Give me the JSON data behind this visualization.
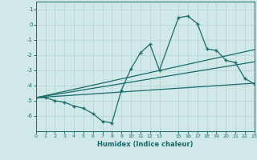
{
  "bg_color": "#d0e8e8",
  "grid_color": "#b8d4d4",
  "line_color": "#1a6b6b",
  "xlabel": "Humidex (Indice chaleur)",
  "xlim": [
    0,
    23
  ],
  "ylim": [
    -7,
    1.5
  ],
  "yticks": [
    1,
    0,
    -1,
    -2,
    -3,
    -4,
    -5,
    -6
  ],
  "xticks": [
    0,
    1,
    2,
    3,
    4,
    5,
    6,
    7,
    8,
    9,
    10,
    11,
    12,
    13,
    15,
    16,
    17,
    18,
    19,
    20,
    21,
    22,
    23
  ],
  "curve_x": [
    0,
    1,
    2,
    3,
    4,
    5,
    6,
    7,
    8,
    9,
    10,
    11,
    12,
    13,
    15,
    16,
    17,
    18,
    19,
    20,
    21,
    22,
    23
  ],
  "curve_y": [
    -4.8,
    -4.8,
    -5.0,
    -5.1,
    -5.35,
    -5.5,
    -5.85,
    -6.35,
    -6.45,
    -4.3,
    -2.9,
    -1.85,
    -1.3,
    -3.0,
    0.45,
    0.55,
    0.05,
    -1.6,
    -1.7,
    -2.35,
    -2.5,
    -3.55,
    -3.9
  ],
  "line1_x": [
    0,
    23
  ],
  "line1_y": [
    -4.8,
    -1.65
  ],
  "line2_x": [
    0,
    23
  ],
  "line2_y": [
    -4.8,
    -2.45
  ],
  "line3_x": [
    0,
    23
  ],
  "line3_y": [
    -4.8,
    -3.85
  ]
}
